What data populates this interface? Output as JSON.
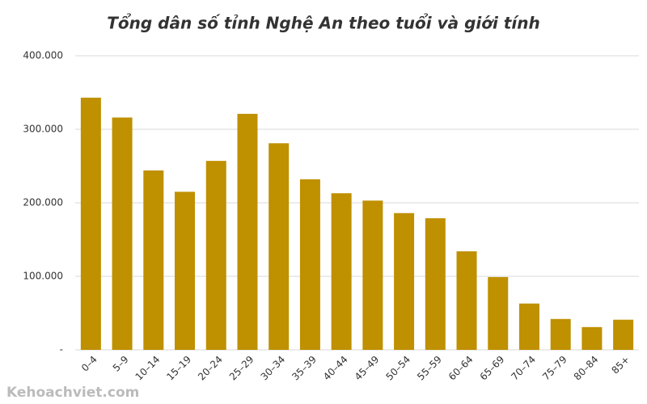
{
  "chart_data": {
    "type": "bar",
    "title": "Tổng dân số tỉnh Nghệ An theo tuổi và giới tính",
    "categories": [
      "0–4",
      "5–9",
      "10–14",
      "15–19",
      "20–24",
      "25–29",
      "30–34",
      "35–39",
      "40–44",
      "45–49",
      "50–54",
      "55–59",
      "60–64",
      "65–69",
      "70–74",
      "75–79",
      "80–84",
      "85+"
    ],
    "values": [
      343000,
      316000,
      244000,
      215000,
      257000,
      321000,
      281000,
      232000,
      213000,
      203000,
      186000,
      179000,
      134000,
      99000,
      63000,
      42000,
      31000,
      41000
    ],
    "color": "#bf9000",
    "ylim": [
      0,
      400000
    ],
    "yticks": [
      {
        "value": 0,
        "label": "-"
      },
      {
        "value": 100000,
        "label": "100.000"
      },
      {
        "value": 200000,
        "label": "200.000"
      },
      {
        "value": 300000,
        "label": "300.000"
      },
      {
        "value": 400000,
        "label": "400.000"
      }
    ],
    "grid": true,
    "watermark": "Kehoachviet.com"
  }
}
